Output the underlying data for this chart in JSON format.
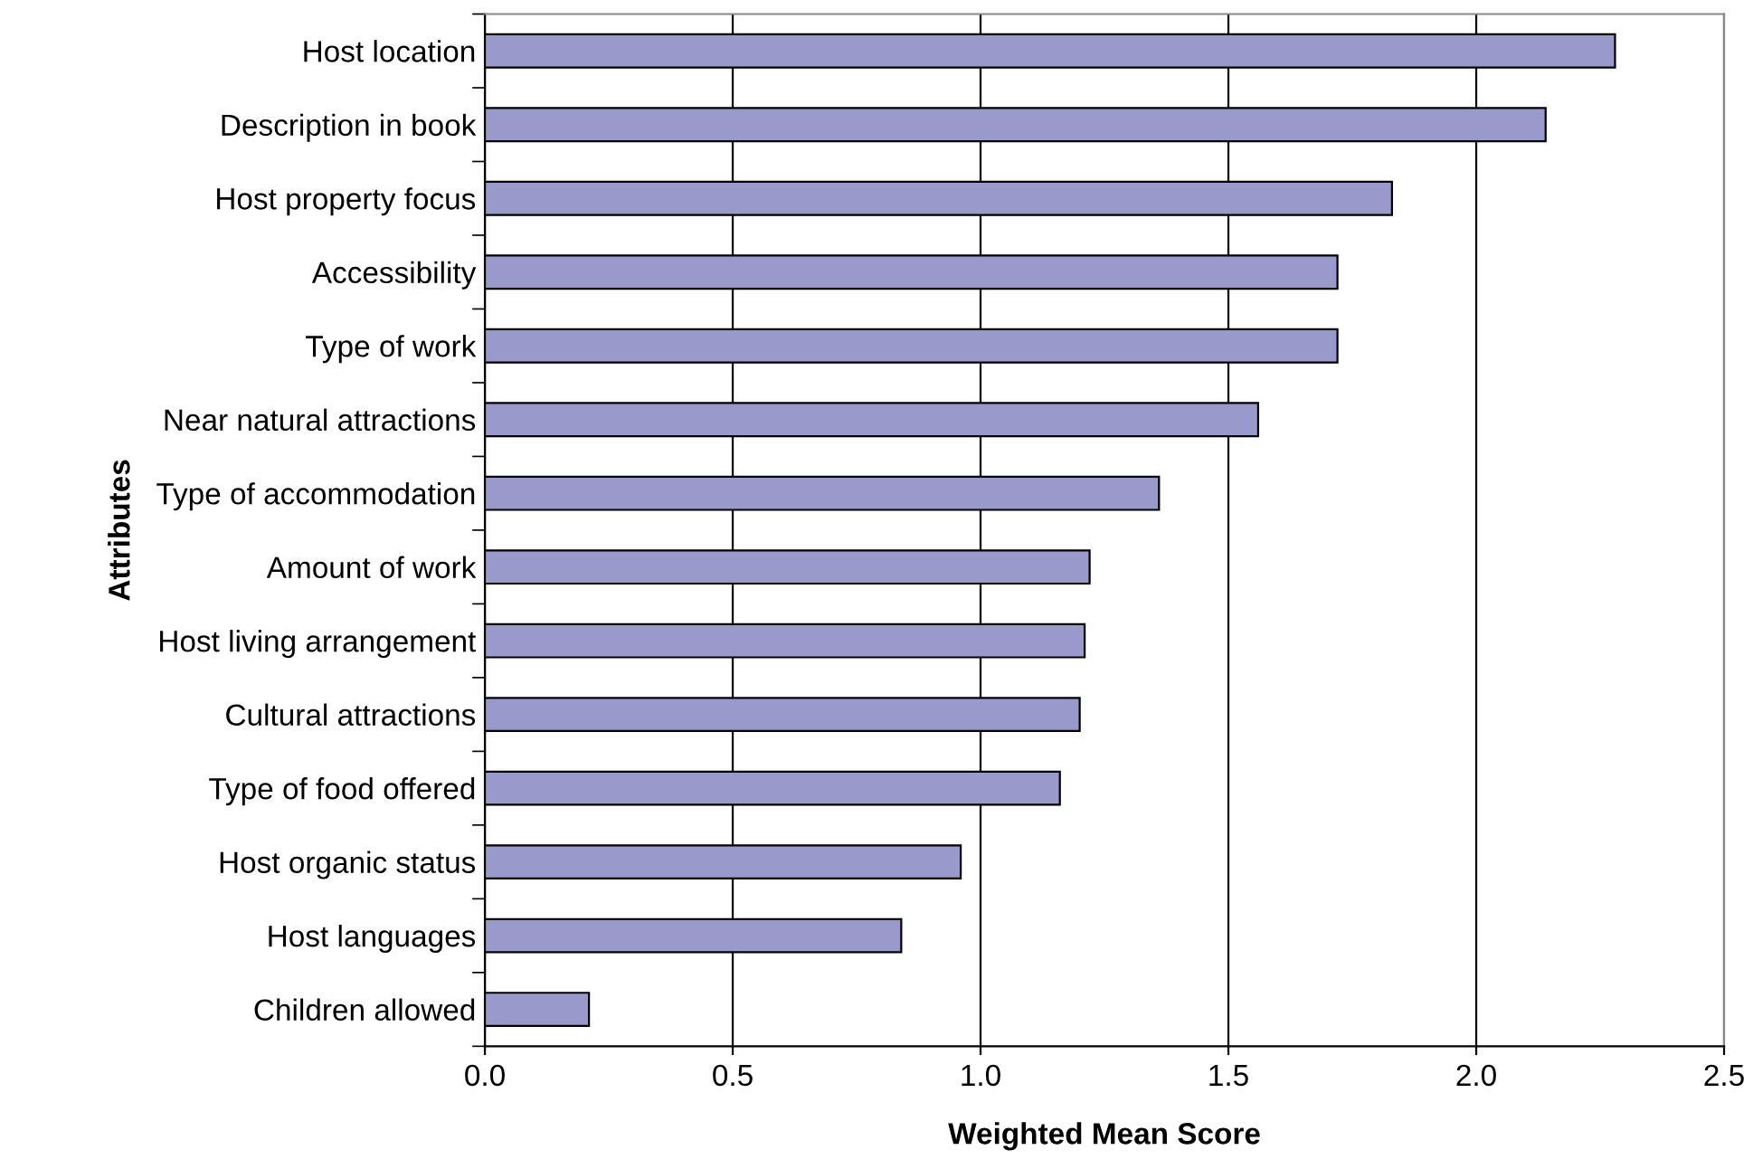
{
  "chart_data": {
    "type": "bar",
    "orientation": "horizontal",
    "xlabel": "Weighted Mean Score",
    "ylabel": "Attributes",
    "categories": [
      "Host location",
      "Description in book",
      "Host property focus",
      "Accessibility",
      "Type of work",
      "Near natural attractions",
      "Type of accommodation",
      "Amount of work",
      "Host living arrangement",
      "Cultural attractions",
      "Type of food offered",
      "Host organic status",
      "Host languages",
      "Children allowed"
    ],
    "values": [
      2.28,
      2.14,
      1.83,
      1.72,
      1.72,
      1.56,
      1.36,
      1.22,
      1.21,
      1.2,
      1.16,
      0.96,
      0.84,
      0.21
    ],
    "color": "#9999cc",
    "xlim": [
      0,
      2.5
    ],
    "xticks": [
      {
        "value": 0,
        "label": "0.0"
      },
      {
        "value": 0.5,
        "label": "0.5"
      },
      {
        "value": 1,
        "label": "1.0"
      },
      {
        "value": 1.5,
        "label": "1.5"
      },
      {
        "value": 2,
        "label": "2.0"
      },
      {
        "value": 2.5,
        "label": "2.5"
      }
    ],
    "grid": "x",
    "legend": false
  }
}
